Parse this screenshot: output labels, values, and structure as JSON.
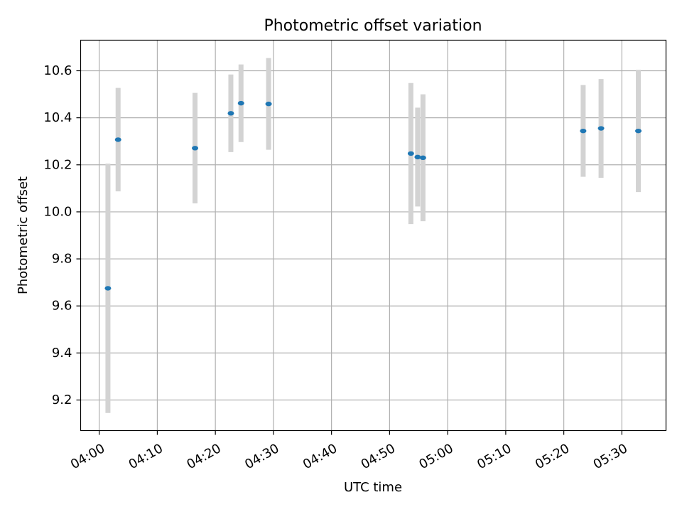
{
  "chart_data": {
    "type": "scatter",
    "title": "Photometric offset variation",
    "xlabel": "UTC time",
    "ylabel": "Photometric offset",
    "grid": true,
    "x_tick_labels": [
      "04:00",
      "04:10",
      "04:20",
      "04:30",
      "04:40",
      "04:50",
      "05:00",
      "05:10",
      "05:20",
      "05:30"
    ],
    "x_ticks_minutes": [
      0,
      10,
      20,
      30,
      40,
      50,
      60,
      70,
      80,
      90
    ],
    "xlim_minutes": [
      -3.2,
      97.6
    ],
    "y_tick_labels": [
      "9.2",
      "9.4",
      "9.6",
      "9.8",
      "10.0",
      "10.2",
      "10.4",
      "10.6"
    ],
    "y_ticks": [
      9.2,
      9.4,
      9.6,
      9.8,
      10.0,
      10.2,
      10.4,
      10.6
    ],
    "ylim": [
      9.07,
      10.73
    ],
    "marker_color": "#1f77b4",
    "errorbar_color": "#d3d3d3",
    "points": [
      {
        "t": "04:01:30",
        "y": 9.675,
        "lo": 9.145,
        "hi": 10.205
      },
      {
        "t": "04:03:15",
        "y": 10.307,
        "lo": 10.087,
        "hi": 10.527
      },
      {
        "t": "04:16:30",
        "y": 10.271,
        "lo": 10.036,
        "hi": 10.506
      },
      {
        "t": "04:22:40",
        "y": 10.419,
        "lo": 10.254,
        "hi": 10.584
      },
      {
        "t": "04:24:25",
        "y": 10.462,
        "lo": 10.297,
        "hi": 10.627
      },
      {
        "t": "04:29:10",
        "y": 10.459,
        "lo": 10.264,
        "hi": 10.654
      },
      {
        "t": "04:53:40",
        "y": 10.248,
        "lo": 9.948,
        "hi": 10.548
      },
      {
        "t": "04:54:50",
        "y": 10.233,
        "lo": 10.023,
        "hi": 10.443
      },
      {
        "t": "04:55:45",
        "y": 10.23,
        "lo": 9.96,
        "hi": 10.5
      },
      {
        "t": "05:23:20",
        "y": 10.344,
        "lo": 10.149,
        "hi": 10.539
      },
      {
        "t": "05:26:25",
        "y": 10.355,
        "lo": 10.145,
        "hi": 10.565
      },
      {
        "t": "05:32:50",
        "y": 10.344,
        "lo": 10.084,
        "hi": 10.604
      }
    ]
  }
}
